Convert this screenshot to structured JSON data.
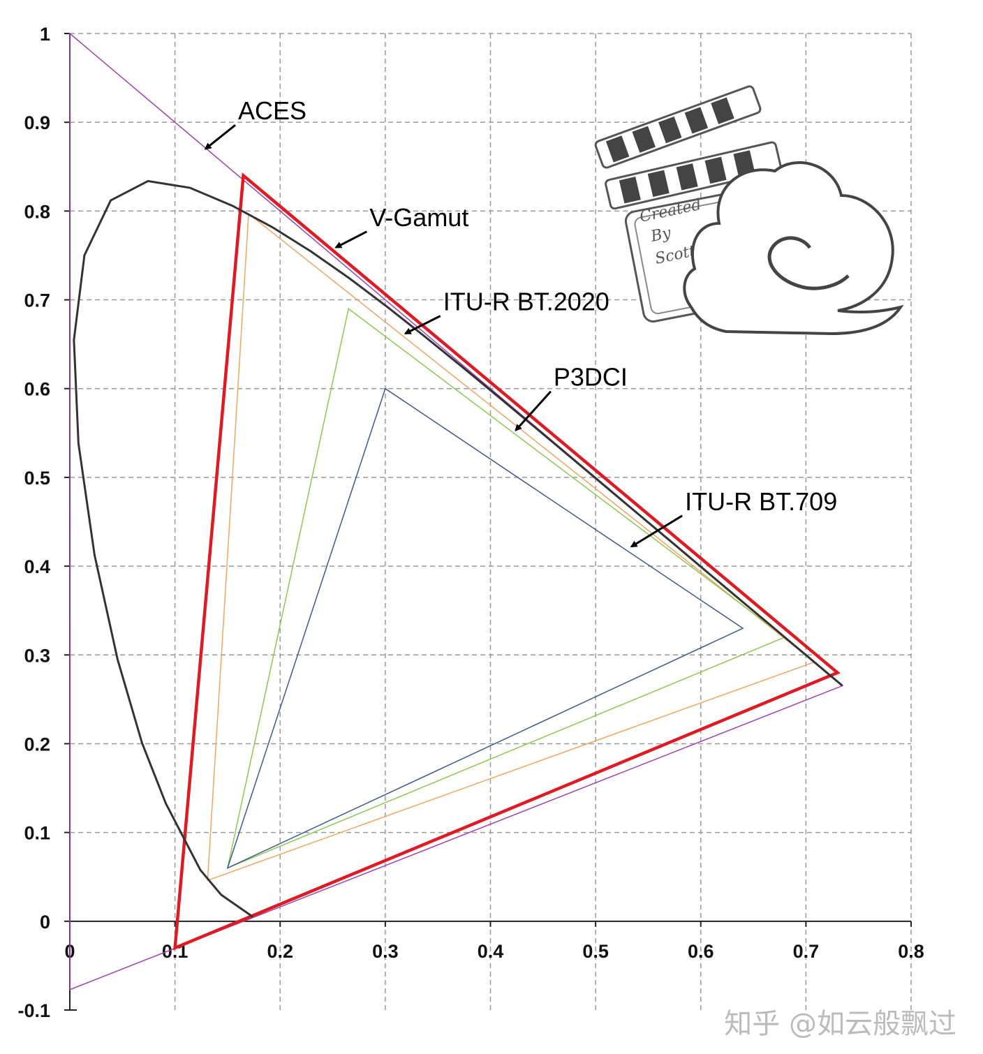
{
  "chart_data": {
    "type": "line",
    "title": "",
    "xlabel": "",
    "ylabel": "",
    "xlim": [
      0,
      0.8
    ],
    "ylim": [
      -0.1,
      1
    ],
    "xticks": [
      "0",
      "0.1",
      "0.2",
      "0.3",
      "0.4",
      "0.5",
      "0.6",
      "0.7",
      "0.8"
    ],
    "yticks": [
      "1",
      "0.9",
      "0.8",
      "0.7",
      "0.6",
      "0.5",
      "0.4",
      "0.3",
      "0.2",
      "0.1",
      "0",
      "-0.1"
    ],
    "grid": true,
    "series": [
      {
        "name": "ACES",
        "color": "#a040b0",
        "width": 1.5,
        "points": [
          [
            0.7347,
            0.2653
          ],
          [
            0.0,
            1.0
          ],
          [
            0.0001,
            -0.077
          ]
        ]
      },
      {
        "name": "V-Gamut",
        "color": "#e01a22",
        "width": 4.5,
        "points": [
          [
            0.73,
            0.28
          ],
          [
            0.165,
            0.84
          ],
          [
            0.1,
            -0.03
          ]
        ]
      },
      {
        "name": "ITU-R BT.2020",
        "color": "#f4a460",
        "width": 1.5,
        "points": [
          [
            0.708,
            0.292
          ],
          [
            0.17,
            0.797
          ],
          [
            0.131,
            0.046
          ]
        ]
      },
      {
        "name": "P3DCI",
        "color": "#8cc850",
        "width": 1.5,
        "points": [
          [
            0.68,
            0.32
          ],
          [
            0.265,
            0.69
          ],
          [
            0.15,
            0.06
          ]
        ]
      },
      {
        "name": "ITU-R BT.709",
        "color": "#3a5a8c",
        "width": 1.5,
        "points": [
          [
            0.64,
            0.33
          ],
          [
            0.3,
            0.6
          ],
          [
            0.15,
            0.06
          ]
        ]
      },
      {
        "name": "",
        "color": "#333333",
        "width": 3,
        "points": [
          [
            0.1741,
            0.005
          ],
          [
            0.144,
            0.0297
          ],
          [
            0.1241,
            0.0578
          ],
          [
            0.0913,
            0.1327
          ],
          [
            0.0687,
            0.2007
          ],
          [
            0.0454,
            0.295
          ],
          [
            0.0235,
            0.4127
          ],
          [
            0.0082,
            0.5384
          ],
          [
            0.0039,
            0.6548
          ],
          [
            0.0139,
            0.7502
          ],
          [
            0.0389,
            0.812
          ],
          [
            0.0743,
            0.8338
          ],
          [
            0.1142,
            0.8262
          ],
          [
            0.1547,
            0.8059
          ],
          [
            0.1929,
            0.7816
          ],
          [
            0.2296,
            0.7543
          ],
          [
            0.2658,
            0.7243
          ],
          [
            0.3016,
            0.6923
          ],
          [
            0.3373,
            0.6589
          ],
          [
            0.3731,
            0.6245
          ],
          [
            0.4087,
            0.5896
          ],
          [
            0.4441,
            0.5547
          ],
          [
            0.4788,
            0.5202
          ],
          [
            0.5125,
            0.4866
          ],
          [
            0.5448,
            0.4544
          ],
          [
            0.5752,
            0.4242
          ],
          [
            0.6029,
            0.3965
          ],
          [
            0.627,
            0.3725
          ],
          [
            0.6482,
            0.3514
          ],
          [
            0.6658,
            0.334
          ],
          [
            0.6801,
            0.3197
          ],
          [
            0.6915,
            0.3083
          ],
          [
            0.7006,
            0.2993
          ],
          [
            0.7079,
            0.292
          ],
          [
            0.714,
            0.2859
          ],
          [
            0.719,
            0.2809
          ],
          [
            0.7347,
            0.2653
          ]
        ]
      }
    ],
    "annotations": [
      {
        "text": "ACES",
        "at": [
          0.16,
          0.9
        ],
        "arrow_to": [
          0.129,
          0.87
        ]
      },
      {
        "text": "V-Gamut",
        "at": [
          0.285,
          0.78
        ],
        "arrow_to": [
          0.253,
          0.759
        ]
      },
      {
        "text": "ITU-R BT.2020",
        "at": [
          0.355,
          0.685
        ],
        "arrow_to": [
          0.319,
          0.662
        ]
      },
      {
        "text": "P3DCI",
        "at": [
          0.46,
          0.6
        ],
        "arrow_to": [
          0.424,
          0.553
        ]
      },
      {
        "text": "ITU-R BT.709",
        "at": [
          0.585,
          0.46
        ],
        "arrow_to": [
          0.534,
          0.422
        ]
      }
    ]
  },
  "logo": {
    "text": [
      "Created",
      "By",
      "Scott"
    ]
  },
  "watermark": "知乎 @如云般飘过"
}
